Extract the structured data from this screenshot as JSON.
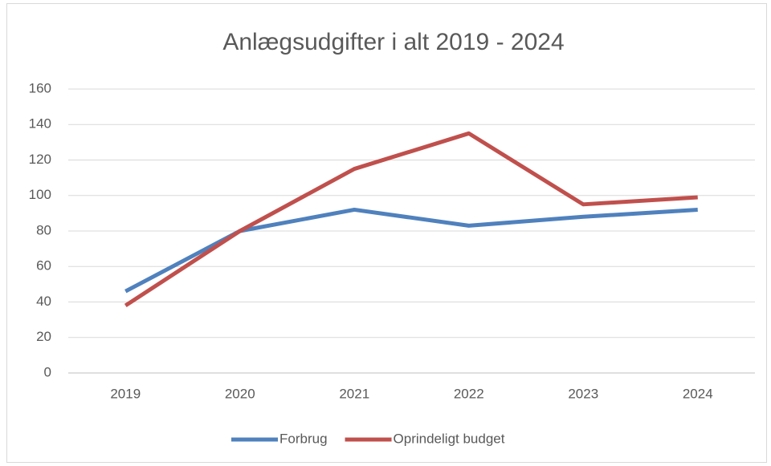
{
  "chart_data": {
    "type": "line",
    "title": "Anlægsudgifter i alt 2019 - 2024",
    "categories": [
      "2019",
      "2020",
      "2021",
      "2022",
      "2023",
      "2024"
    ],
    "series": [
      {
        "name": "Forbrug",
        "color": "#4f81bd",
        "values": [
          46,
          80,
          92,
          83,
          88,
          92
        ]
      },
      {
        "name": "Oprindeligt budget",
        "color": "#c0504d",
        "values": [
          38,
          80,
          115,
          135,
          95,
          99
        ]
      }
    ],
    "ylim": [
      0,
      160
    ],
    "yticks": [
      0,
      20,
      40,
      60,
      80,
      100,
      120,
      140,
      160
    ],
    "grid": true,
    "legend": "bottom"
  }
}
